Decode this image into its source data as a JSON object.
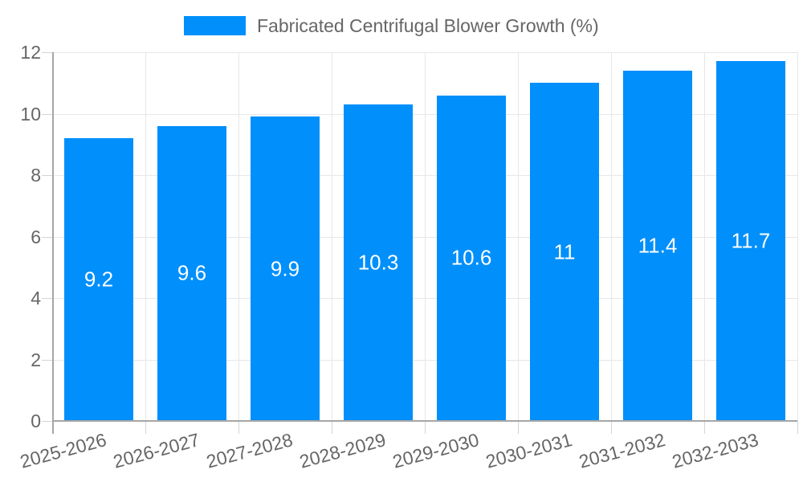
{
  "chart_data": {
    "type": "bar",
    "title": "Fabricated Centrifugal Blower Growth (%)",
    "legend_position": "top",
    "categories": [
      "2025-2026",
      "2026-2027",
      "2027-2028",
      "2028-2029",
      "2029-2030",
      "2030-2031",
      "2031-2032",
      "2032-2033"
    ],
    "series": [
      {
        "name": "Fabricated Centrifugal Blower Growth (%)",
        "values": [
          9.2,
          9.6,
          9.9,
          10.3,
          10.6,
          11,
          11.4,
          11.7
        ],
        "value_labels": [
          "9.2",
          "9.6",
          "9.9",
          "10.3",
          "10.6",
          "11",
          "11.4",
          "11.7"
        ]
      }
    ],
    "ylim": [
      0,
      12
    ],
    "yticks": [
      0,
      2,
      4,
      6,
      8,
      10,
      12
    ],
    "ytick_labels": [
      "0",
      "2",
      "4",
      "6",
      "8",
      "10",
      "12"
    ],
    "grid": "horizontal and vertical, light gray",
    "x_label_rotation_deg": -15,
    "colors": {
      "bar": "#008FFB",
      "bar_value_label": "#ffffff",
      "axis_text": "#666666",
      "legend_text": "#666666",
      "gridline": "#e7e7e7",
      "tick": "#d4d4d4",
      "axis_line": "#a6a6a6",
      "background": "#ffffff"
    }
  }
}
